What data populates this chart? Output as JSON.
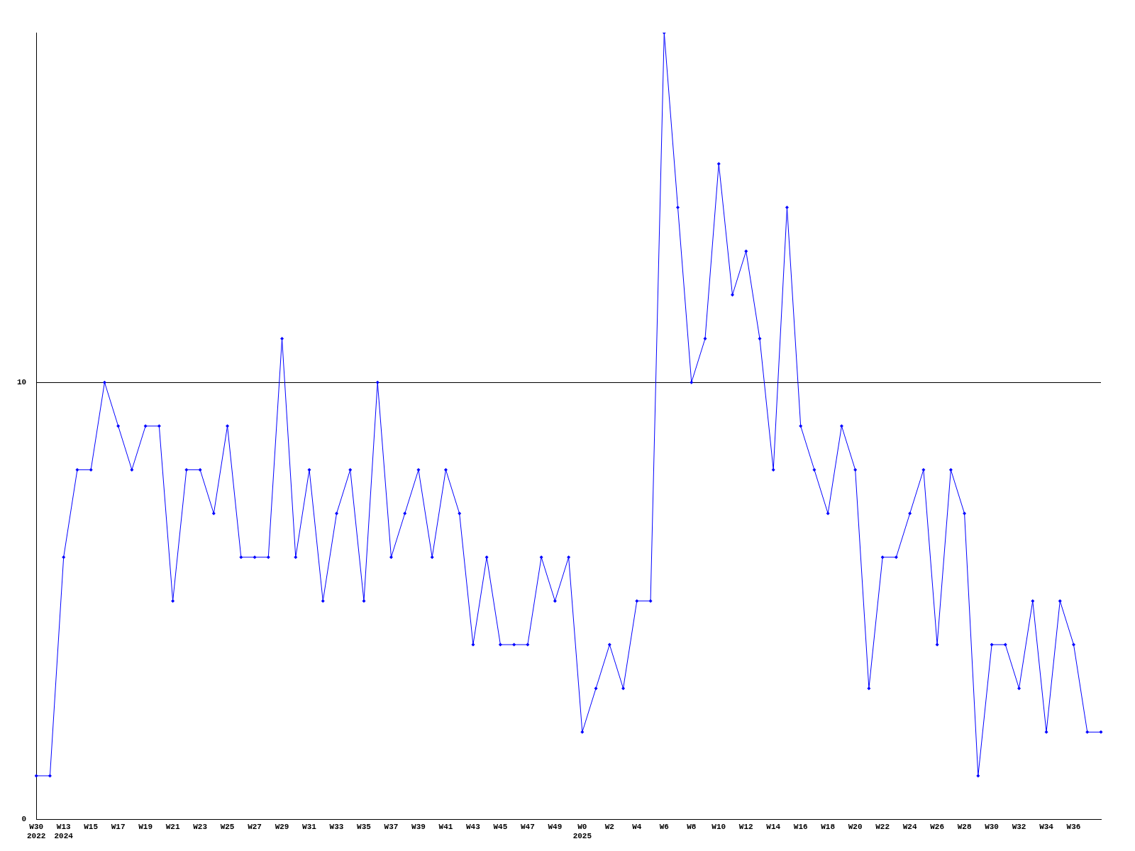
{
  "chart_data": {
    "type": "line",
    "categories": [
      "W30\n2022",
      null,
      "W13\n2024",
      null,
      "W15",
      null,
      "W17",
      null,
      "W19",
      null,
      "W21",
      null,
      "W23",
      null,
      "W25",
      null,
      "W27",
      null,
      "W29",
      null,
      "W31",
      null,
      "W33",
      null,
      "W35",
      null,
      "W37",
      null,
      "W39",
      null,
      "W41",
      null,
      "W43",
      null,
      "W45",
      null,
      "W47",
      null,
      "W49",
      null,
      "W0\n2025",
      null,
      "W2",
      null,
      "W4",
      null,
      "W6",
      null,
      "W8",
      null,
      "W10",
      null,
      "W12",
      null,
      "W14",
      null,
      "W16",
      null,
      "W18",
      null,
      "W20",
      null,
      "W22",
      null,
      "W24",
      null,
      "W26",
      null,
      "W28",
      null,
      "W30",
      null,
      "W32",
      null,
      "W34",
      null,
      "W36",
      null,
      null
    ],
    "series": [
      {
        "color": "#0000ff",
        "values": [
          1,
          1,
          6,
          8,
          8,
          10,
          9,
          8,
          9,
          9,
          5,
          8,
          8,
          7,
          9,
          6,
          6,
          6,
          11,
          6,
          8,
          5,
          7,
          8,
          5,
          10,
          6,
          7,
          8,
          6,
          8,
          7,
          4,
          6,
          4,
          4,
          4,
          6,
          5,
          6,
          2,
          3,
          4,
          3,
          5,
          5,
          18,
          14,
          10,
          11,
          15,
          12,
          13,
          11,
          8,
          14,
          9,
          8,
          7,
          9,
          8,
          3,
          6,
          6,
          7,
          8,
          4,
          8,
          7,
          1,
          4,
          4,
          3,
          5,
          2,
          5,
          4,
          2,
          2
        ]
      }
    ],
    "ylim": [
      0,
      18
    ],
    "yticks": [
      0,
      10
    ],
    "grid": "y",
    "legend": false,
    "marker": "diamond",
    "line_style": "solid"
  }
}
